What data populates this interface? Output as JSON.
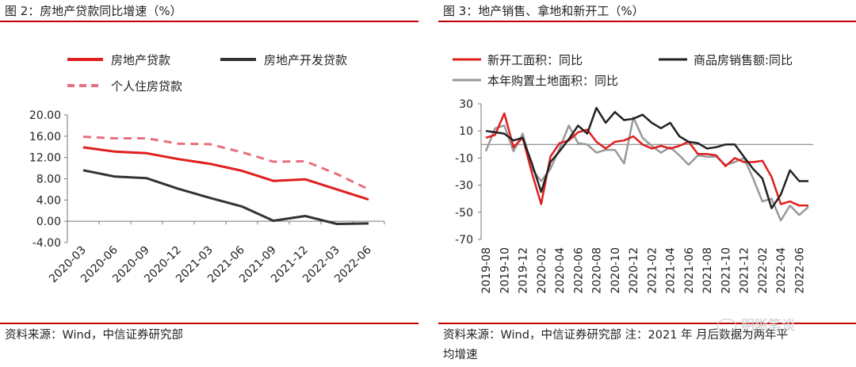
{
  "panel1": {
    "title": "图 2：房地产贷款同比增速（%）",
    "source": "资料来源：Wind，中信证券研究部",
    "chart_data": {
      "type": "line",
      "categories": [
        "2020-03",
        "2020-06",
        "2020-09",
        "2020-12",
        "2021-03",
        "2021-06",
        "2021-09",
        "2021-12",
        "2022-03",
        "2022-06"
      ],
      "ylim": [
        -4,
        20
      ],
      "yticks": [
        "20.00",
        "16.00",
        "12.00",
        "8.00",
        "4.00",
        "0.00",
        "-4.00"
      ],
      "yticks_values": [
        20,
        16,
        12,
        8,
        4,
        0,
        -4
      ],
      "series": [
        {
          "name": "房地产贷款",
          "color": "#e01e1e",
          "dash": "solid",
          "values": [
            13.9,
            13.1,
            12.8,
            11.7,
            10.8,
            9.5,
            7.6,
            7.9,
            6.0,
            4.1
          ]
        },
        {
          "name": "房地产开发贷款",
          "color": "#333333",
          "dash": "solid",
          "values": [
            9.6,
            8.4,
            8.1,
            6.1,
            4.4,
            2.8,
            0.1,
            1.0,
            -0.5,
            -0.4
          ]
        },
        {
          "name": "个人住房贷款",
          "color": "#e8707e",
          "dash": "dashed",
          "values": [
            15.9,
            15.6,
            15.6,
            14.6,
            14.5,
            13.0,
            11.2,
            11.3,
            8.9,
            6.0
          ]
        }
      ]
    }
  },
  "panel2": {
    "title": "图 3：地产销售、拿地和新开工（%）",
    "source_line1": "资料来源：Wind，中信证券研究部 注：2021 年 月后数据为两年平",
    "source_line2": "均增速",
    "watermark": "明晰笔谈",
    "chart_data": {
      "type": "line",
      "categories": [
        "2019-08",
        "2019-09",
        "2019-10",
        "2019-11",
        "2019-12",
        "2020-01",
        "2020-02",
        "2020-03",
        "2020-04",
        "2020-05",
        "2020-06",
        "2020-07",
        "2020-08",
        "2020-09",
        "2020-10",
        "2020-11",
        "2020-12",
        "2021-01",
        "2021-02",
        "2021-03",
        "2021-04",
        "2021-05",
        "2021-06",
        "2021-07",
        "2021-08",
        "2021-09",
        "2021-10",
        "2021-11",
        "2021-12",
        "2022-01",
        "2022-02",
        "2022-03",
        "2022-04",
        "2022-05",
        "2022-06",
        "2022-07"
      ],
      "tick_labels": [
        "2019-08",
        "2019-10",
        "2019-12",
        "2020-02",
        "2020-04",
        "2020-06",
        "2020-08",
        "2020-10",
        "2020-12",
        "2021-02",
        "2021-04",
        "2021-06",
        "2021-08",
        "2021-10",
        "2021-12",
        "2022-02",
        "2022-04",
        "2022-06"
      ],
      "ylim": [
        -70,
        30
      ],
      "yticks": [
        "30",
        "10",
        "-10",
        "-30",
        "-50",
        "-70"
      ],
      "yticks_values": [
        30,
        10,
        -10,
        -30,
        -50,
        -70
      ],
      "series": [
        {
          "name": "新开工面积：同比",
          "color": "#e01e1e",
          "values": [
            5,
            7,
            23,
            -2,
            5,
            -21,
            -44,
            -9,
            1,
            3,
            9,
            11,
            2,
            -3,
            2,
            3,
            6,
            0,
            -3,
            -1,
            -3,
            -1,
            2,
            -7,
            -7,
            -8,
            -16,
            -10,
            -13,
            -13,
            -12,
            -24,
            -44,
            -42,
            -45,
            -45
          ]
        },
        {
          "name": "商品房销售额:同比",
          "color": "#222222",
          "values": [
            10,
            9,
            8,
            3,
            5,
            -14,
            -35,
            -13,
            -5,
            4,
            14,
            8,
            27,
            16,
            24,
            18,
            19,
            22,
            16,
            12,
            16,
            6,
            2,
            1,
            -3,
            -2,
            0,
            0,
            -9,
            -18,
            -25,
            -47,
            -37,
            -19,
            -27,
            -27
          ]
        },
        {
          "name": "本年购置土地面积：同比",
          "color": "#999999",
          "values": [
            -5,
            12,
            14,
            -5,
            8,
            -18,
            -27,
            -18,
            -3,
            14,
            1,
            0,
            -6,
            -4,
            -4,
            -14,
            20,
            5,
            -1,
            -6,
            -2,
            -8,
            -15,
            -8,
            -9,
            -9,
            -15,
            -13,
            -10,
            -25,
            -42,
            -40,
            -56,
            -45,
            -52,
            -46
          ]
        }
      ]
    }
  }
}
